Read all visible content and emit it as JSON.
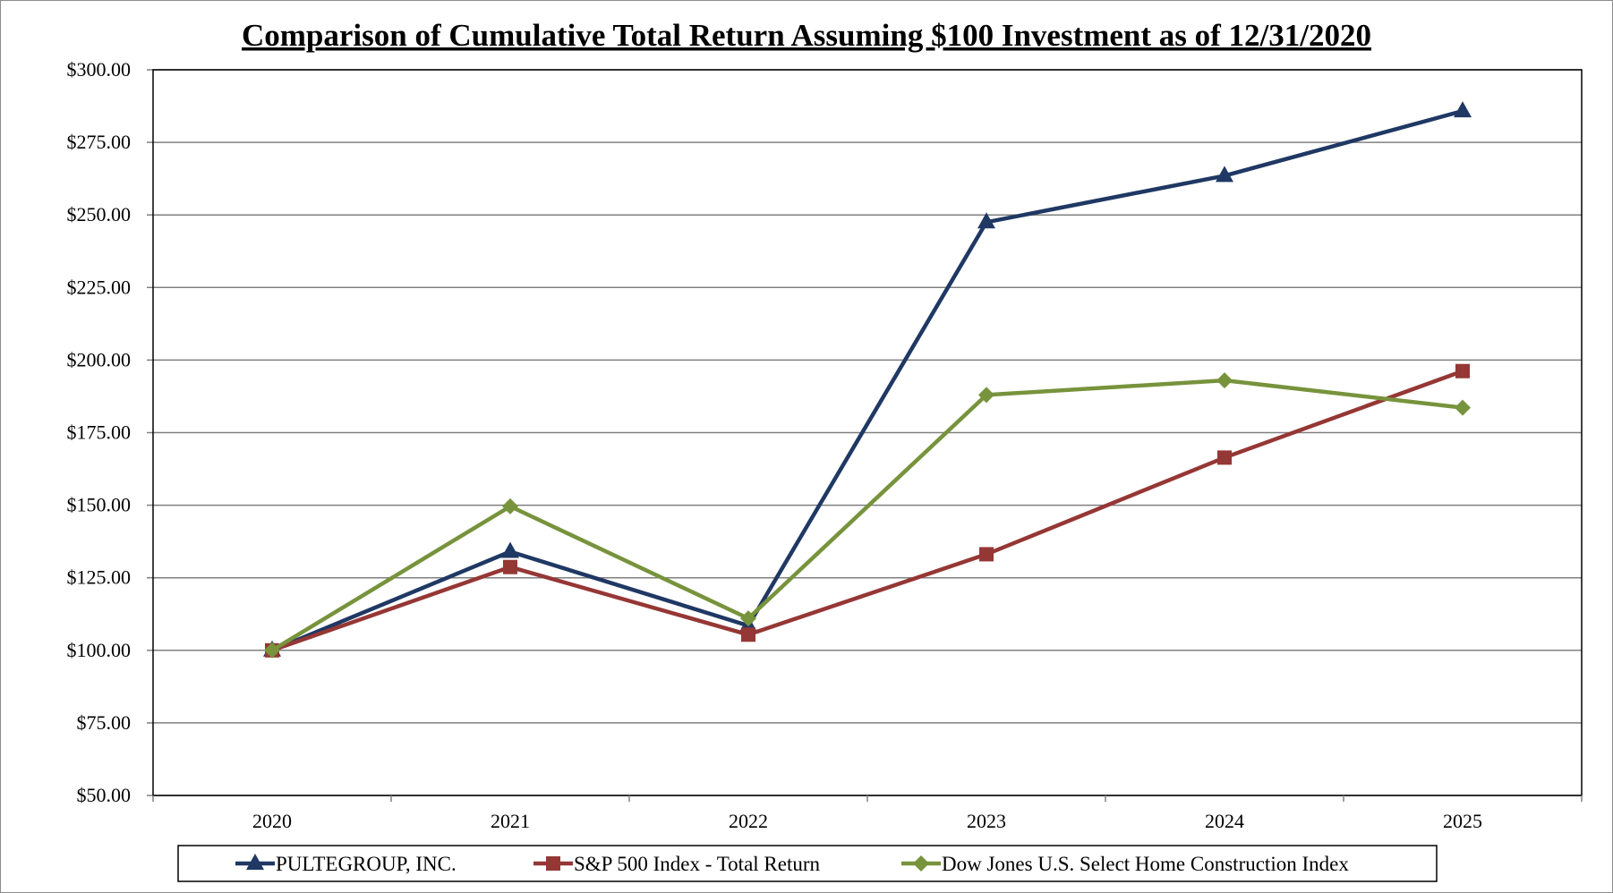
{
  "chart_data": {
    "type": "line",
    "title": "Comparison of Cumulative Total Return Assuming $100 Investment as of 12/31/2020",
    "xlabel": "",
    "ylabel": "",
    "categories": [
      "2020",
      "2021",
      "2022",
      "2023",
      "2024",
      "2025"
    ],
    "ylim": [
      50,
      300
    ],
    "yticks": [
      50,
      75,
      100,
      125,
      150,
      175,
      200,
      225,
      250,
      275,
      300
    ],
    "ytick_labels": [
      "$50.00",
      "$75.00",
      "$100.00",
      "$125.00",
      "$150.00",
      "$175.00",
      "$200.00",
      "$225.00",
      "$250.00",
      "$275.00",
      "$300.00"
    ],
    "grid": "horizontal",
    "legend_position": "bottom",
    "series": [
      {
        "name": "PULTEGROUP, INC.",
        "color": "#1f3864",
        "marker": "triangle",
        "values": [
          100.0,
          134.0,
          108.5,
          247.5,
          263.5,
          285.8
        ]
      },
      {
        "name": "S&P 500 Index - Total Return",
        "color": "#953735",
        "marker": "square",
        "values": [
          100.0,
          128.7,
          105.4,
          133.1,
          166.4,
          196.2
        ]
      },
      {
        "name": "Dow Jones U.S. Select Home Construction Index",
        "color": "#77933c",
        "marker": "diamond",
        "values": [
          100.0,
          149.6,
          111.0,
          188.0,
          193.0,
          183.6
        ]
      }
    ]
  }
}
